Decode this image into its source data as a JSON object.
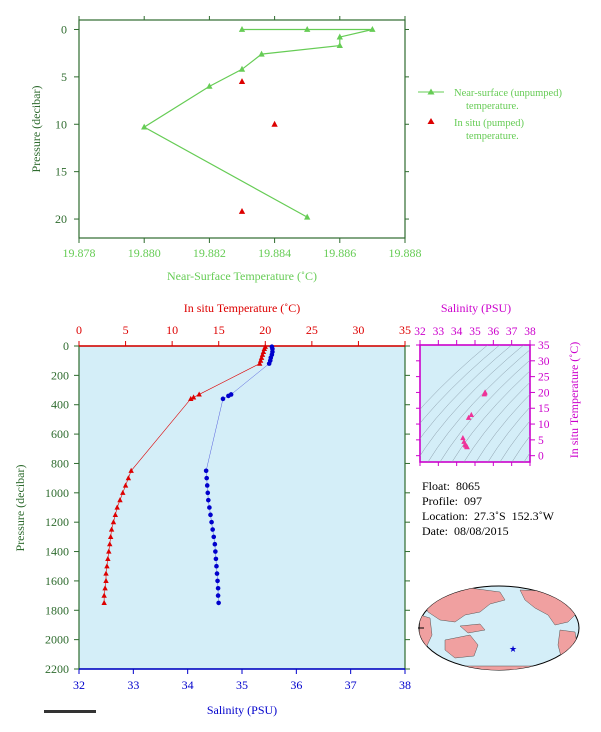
{
  "colors": {
    "green": "#66cc55",
    "axis_green": "#2e6b2e",
    "red": "#dd0000",
    "blue": "#0000cc",
    "magenta": "#cc00cc",
    "pink": "#ee3399",
    "panel_bg": "#d4eef8",
    "land": "#f0a0a0",
    "ocean": "#d4eef8"
  },
  "info": {
    "float": "Float:  8065",
    "profile": "Profile:  097",
    "location": "Location:  27.3˚S  152.3˚W",
    "date": "Date:  08/08/2015"
  },
  "chart_data": [
    {
      "type": "scatter",
      "name": "near-surface",
      "xlabel": "Near-Surface Temperature (˚C)",
      "ylabel": "Pressure (decibar)",
      "xlim": [
        19.878,
        19.888
      ],
      "ylim": [
        22,
        -1
      ],
      "xticks": [
        "19.878",
        "19.880",
        "19.882",
        "19.884",
        "19.886",
        "19.888"
      ],
      "yticks": [
        "0",
        "5",
        "10",
        "15",
        "20"
      ],
      "legend_position": "right",
      "series": [
        {
          "name": "Near-surface (unpumped) temperature.",
          "marker": "triangle-line",
          "x": [
            19.885,
            19.88,
            19.882,
            19.883,
            19.8836,
            19.886,
            19.886,
            19.887,
            19.885,
            19.883
          ],
          "y": [
            19.8,
            10.3,
            6.0,
            4.2,
            2.6,
            1.7,
            0.8,
            0.0,
            0.0,
            0.0
          ]
        },
        {
          "name": "In situ (pumped) temperature.",
          "marker": "triangle",
          "x": [
            19.883,
            19.884,
            19.883
          ],
          "y": [
            5.5,
            10.0,
            19.2
          ]
        }
      ]
    },
    {
      "type": "line",
      "name": "profile",
      "xlabel": "Salinity (PSU)",
      "x2label": "In situ Temperature (˚C)",
      "ylabel": "Pressure (decibar)",
      "xlim": [
        32,
        38
      ],
      "x2lim": [
        0,
        35
      ],
      "ylim": [
        2200,
        0
      ],
      "xticks": [
        "32",
        "33",
        "34",
        "35",
        "36",
        "37",
        "38"
      ],
      "x2ticks": [
        "0",
        "5",
        "10",
        "15",
        "20",
        "25",
        "30",
        "35"
      ],
      "yticks": [
        "0",
        "200",
        "400",
        "600",
        "800",
        "1000",
        "1200",
        "1400",
        "1600",
        "1800",
        "2000",
        "2200"
      ],
      "series": [
        {
          "name": "In situ Temperature",
          "axis": "top",
          "pressure": [
            5,
            20,
            40,
            60,
            80,
            100,
            120,
            330,
            350,
            360,
            850,
            900,
            950,
            1000,
            1050,
            1100,
            1150,
            1200,
            1250,
            1300,
            1350,
            1400,
            1450,
            1500,
            1550,
            1600,
            1650,
            1700,
            1750
          ],
          "values": [
            20.0,
            19.9,
            19.8,
            19.7,
            19.6,
            19.5,
            19.4,
            12.9,
            12.3,
            12.0,
            5.6,
            5.3,
            5.0,
            4.7,
            4.4,
            4.1,
            3.9,
            3.7,
            3.5,
            3.4,
            3.3,
            3.2,
            3.1,
            3.0,
            2.9,
            2.9,
            2.8,
            2.7,
            2.7
          ]
        },
        {
          "name": "Salinity",
          "axis": "bottom",
          "pressure": [
            5,
            20,
            40,
            60,
            80,
            100,
            120,
            330,
            340,
            360,
            850,
            900,
            950,
            1000,
            1050,
            1100,
            1150,
            1200,
            1250,
            1300,
            1350,
            1400,
            1450,
            1500,
            1550,
            1600,
            1650,
            1700,
            1750
          ],
          "values": [
            35.55,
            35.56,
            35.56,
            35.55,
            35.53,
            35.52,
            35.5,
            34.8,
            34.75,
            34.65,
            34.34,
            34.35,
            34.36,
            34.37,
            34.38,
            34.4,
            34.42,
            34.44,
            34.46,
            34.48,
            34.5,
            34.51,
            34.52,
            34.53,
            34.54,
            34.55,
            34.56,
            34.56,
            34.57
          ]
        }
      ]
    },
    {
      "type": "scatter",
      "name": "ts-diagram",
      "xlabel": "Salinity (PSU)",
      "ylabel": "In situ Temperature (˚C)",
      "xlim": [
        32,
        38
      ],
      "ylim": [
        -2,
        35
      ],
      "xticks": [
        "32",
        "33",
        "34",
        "35",
        "36",
        "37",
        "38"
      ],
      "yticks": [
        "0",
        "5",
        "10",
        "15",
        "20",
        "25",
        "30",
        "35"
      ],
      "series": [
        {
          "name": "T-S",
          "x": [
            35.55,
            35.53,
            35.5,
            34.8,
            34.65,
            34.34,
            34.4,
            34.46,
            34.5,
            34.55,
            34.57
          ],
          "y": [
            20.0,
            19.7,
            19.4,
            12.9,
            12.0,
            5.6,
            4.4,
            3.5,
            3.2,
            2.9,
            2.7
          ]
        }
      ]
    }
  ]
}
